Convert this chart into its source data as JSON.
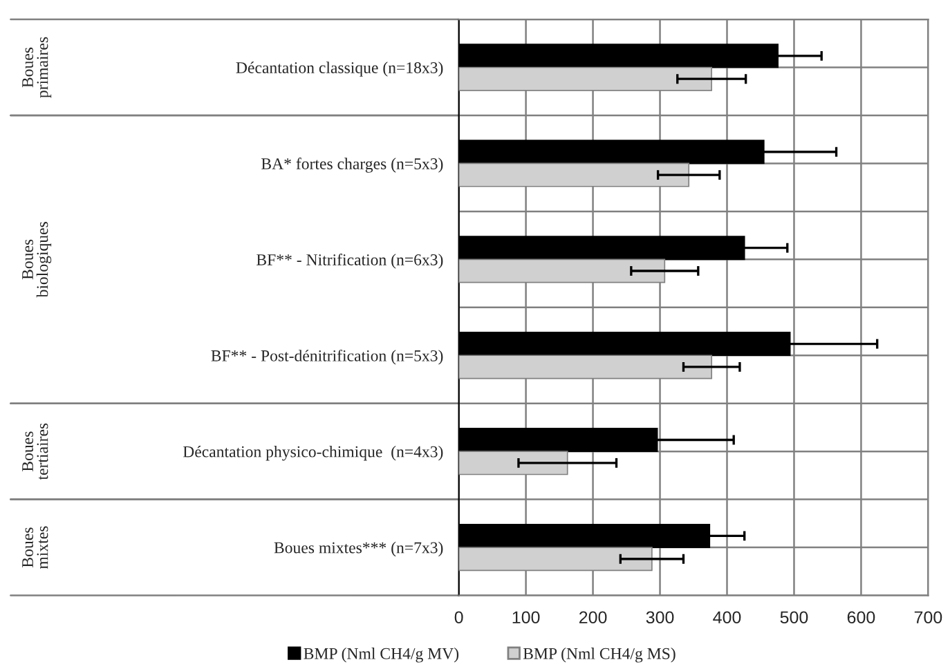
{
  "chart_data": {
    "type": "bar",
    "orientation": "horizontal",
    "categories": [
      "Décantation classique (n=18x3)",
      "BA* fortes charges (n=5x3)",
      "BF** - Nitrification (n=6x3)",
      "BF** - Post-dénitrification (n=5x3)",
      "Décantation physico-chimique  (n=4x3)",
      "Boues mixtes*** (n=7x3)"
    ],
    "series": [
      {
        "name": "BMP (Nml CH4/g MV)",
        "color": "#000000",
        "values": [
          476,
          455,
          426,
          494,
          296,
          374
        ],
        "errors": [
          65,
          108,
          64,
          130,
          114,
          52
        ]
      },
      {
        "name": "BMP (Nml CH4/g MS)",
        "color": "#d0d0d0",
        "values": [
          377,
          343,
          307,
          377,
          162,
          288
        ],
        "errors": [
          51,
          46,
          50,
          42,
          73,
          47
        ]
      }
    ],
    "xlim": [
      0,
      700
    ],
    "xticks": [
      0,
      100,
      200,
      300,
      400,
      500,
      600,
      700
    ],
    "grid": true,
    "legend": "bottom",
    "annotations": [
      "Boues\nprimaires",
      "Boues\nbiologiques",
      "Boues\ntertiaires",
      "Boues\nmixtes"
    ]
  }
}
